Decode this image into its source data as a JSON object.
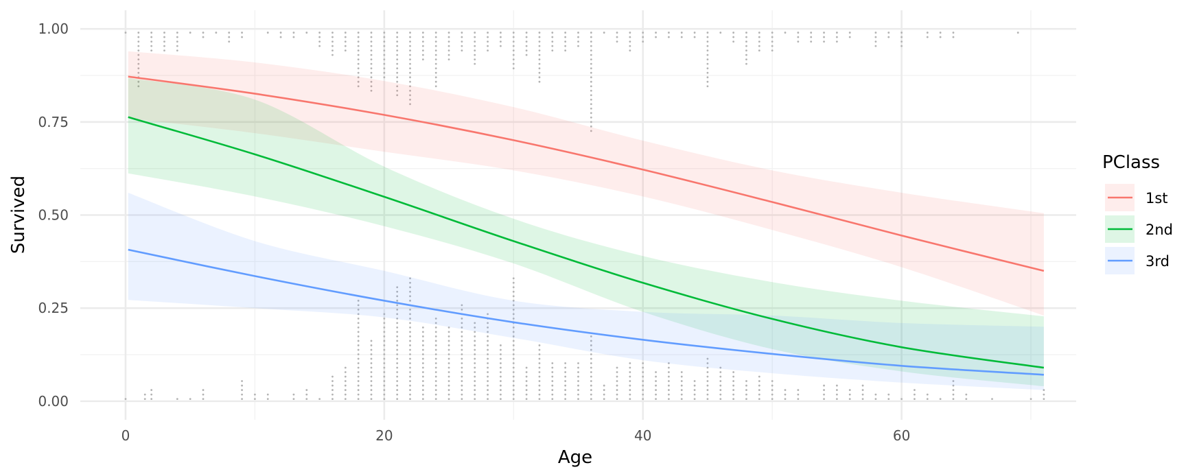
{
  "chart_data": {
    "type": "line",
    "title": "",
    "xlabel": "Age",
    "ylabel": "Survived",
    "xlim": [
      -3.5,
      73.5
    ],
    "ylim": [
      -0.05,
      1.05
    ],
    "x_ticks": [
      0,
      20,
      40,
      60
    ],
    "x_tick_labels": [
      "0",
      "20",
      "40",
      "60"
    ],
    "y_ticks": [
      0,
      0.25,
      0.5,
      0.75,
      1.0
    ],
    "y_tick_labels": [
      "0.00",
      "0.25",
      "0.50",
      "0.75",
      "1.00"
    ],
    "grid": true,
    "legend": {
      "title": "PClass",
      "placement": "right"
    },
    "series": [
      {
        "name": "1st",
        "color": "#f8766d",
        "x": [
          0.2,
          10,
          20,
          30,
          40,
          50,
          60,
          71
        ],
        "fit": [
          0.872,
          0.826,
          0.769,
          0.701,
          0.622,
          0.535,
          0.445,
          0.35
        ],
        "lower": [
          0.76,
          0.72,
          0.67,
          0.62,
          0.55,
          0.46,
          0.36,
          0.23
        ],
        "upper": [
          0.94,
          0.91,
          0.86,
          0.79,
          0.7,
          0.62,
          0.56,
          0.505
        ]
      },
      {
        "name": "2nd",
        "color": "#00ba38",
        "x": [
          0.2,
          10,
          20,
          30,
          40,
          50,
          60,
          71
        ],
        "fit": [
          0.763,
          0.663,
          0.549,
          0.43,
          0.318,
          0.221,
          0.145,
          0.09
        ],
        "lower": [
          0.612,
          0.55,
          0.47,
          0.37,
          0.24,
          0.14,
          0.08,
          0.04
        ],
        "upper": [
          0.868,
          0.81,
          0.63,
          0.49,
          0.39,
          0.32,
          0.27,
          0.228
        ]
      },
      {
        "name": "3rd",
        "color": "#619cff",
        "x": [
          0.2,
          10,
          20,
          30,
          40,
          50,
          60,
          71
        ],
        "fit": [
          0.407,
          0.336,
          0.27,
          0.212,
          0.165,
          0.127,
          0.095,
          0.071
        ],
        "lower": [
          0.272,
          0.25,
          0.225,
          0.17,
          0.11,
          0.075,
          0.05,
          0.03
        ],
        "upper": [
          0.56,
          0.43,
          0.35,
          0.27,
          0.24,
          0.23,
          0.21,
          0.2
        ]
      }
    ],
    "points": {
      "color": "#b3b3b3",
      "survived_ages": [
        0,
        1,
        2,
        3,
        4,
        5,
        6,
        7,
        8,
        9,
        11,
        12,
        13,
        14,
        15,
        16,
        17,
        18,
        19,
        20,
        21,
        22,
        23,
        24,
        25,
        26,
        27,
        28,
        29,
        30,
        31,
        32,
        33,
        34,
        35,
        36,
        37,
        38,
        39,
        40,
        41,
        42,
        43,
        44,
        45,
        46,
        47,
        48,
        49,
        50,
        51,
        52,
        53,
        54,
        55,
        56,
        58,
        59,
        60,
        62,
        63,
        64,
        69
      ],
      "survived_counts": [
        1,
        13,
        5,
        5,
        5,
        1,
        2,
        1,
        3,
        2,
        1,
        2,
        2,
        1,
        4,
        6,
        5,
        13,
        14,
        11,
        15,
        17,
        7,
        13,
        7,
        5,
        8,
        5,
        4,
        9,
        6,
        12,
        5,
        5,
        4,
        23,
        1,
        3,
        5,
        3,
        2,
        2,
        2,
        2,
        13,
        1,
        3,
        8,
        5,
        5,
        1,
        3,
        3,
        3,
        3,
        2,
        4,
        2,
        4,
        2,
        2,
        2,
        1
      ],
      "died_ages": [
        0,
        1.5,
        2,
        4,
        5,
        6,
        9,
        10,
        11,
        13,
        14,
        15,
        16,
        17,
        18,
        19,
        20,
        21,
        22,
        23,
        24,
        25,
        26,
        27,
        28,
        29,
        30,
        31,
        32,
        33,
        34,
        35,
        36,
        37,
        38,
        39,
        40,
        41,
        42,
        43,
        44,
        45,
        46,
        47,
        48,
        49,
        50,
        51,
        52,
        54,
        55,
        56,
        57,
        58,
        59,
        60,
        61,
        62,
        63,
        64,
        65,
        67,
        70,
        71
      ],
      "died_counts": [
        1,
        2,
        3,
        1,
        1,
        3,
        5,
        2,
        2,
        2,
        3,
        1,
        6,
        8,
        23,
        14,
        20,
        26,
        28,
        17,
        19,
        17,
        22,
        18,
        20,
        13,
        28,
        8,
        13,
        9,
        9,
        9,
        15,
        4,
        8,
        9,
        9,
        7,
        9,
        7,
        5,
        10,
        8,
        7,
        5,
        6,
        5,
        3,
        3,
        4,
        4,
        3,
        4,
        2,
        2,
        1,
        3,
        2,
        1,
        5,
        2,
        1,
        1,
        3
      ]
    }
  }
}
